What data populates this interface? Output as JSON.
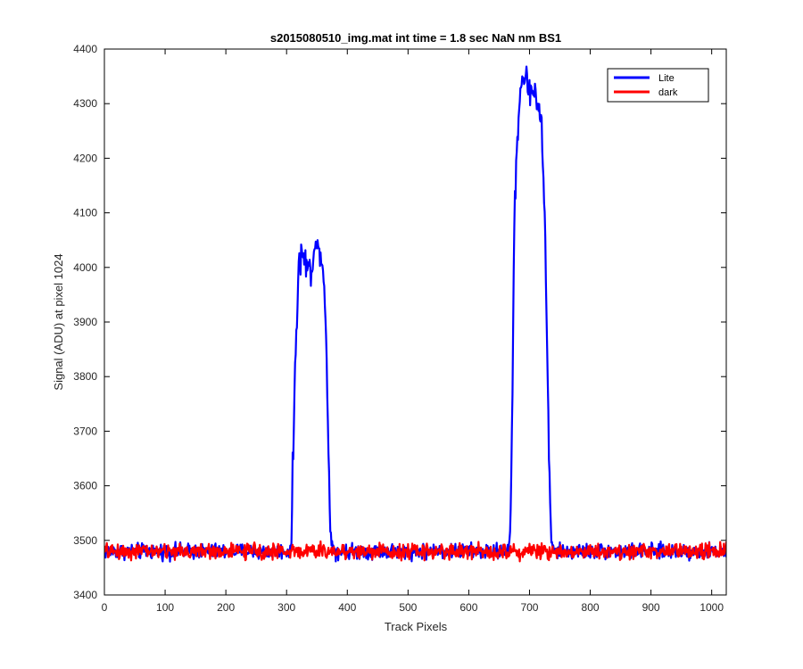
{
  "chart_data": {
    "type": "line",
    "title": "s2015080510_img.mat int time = 1.8 sec  NaN nm BS1",
    "xlabel": "Track Pixels",
    "ylabel": "Signal (ADU) at pixel 1024",
    "xlim": [
      0,
      1024
    ],
    "ylim": [
      3400,
      4400
    ],
    "xticks": [
      0,
      100,
      200,
      300,
      400,
      500,
      600,
      700,
      800,
      900,
      1000
    ],
    "yticks": [
      3400,
      3500,
      3600,
      3700,
      3800,
      3900,
      4000,
      4100,
      4200,
      4300,
      4400
    ],
    "grid": false,
    "legend_position": "top-right",
    "series": [
      {
        "name": "Lite",
        "color": "#0000ff",
        "baseline": 3480,
        "noise": 10,
        "x": [
          0,
          305,
          308,
          310,
          315,
          320,
          325,
          330,
          335,
          340,
          345,
          350,
          355,
          360,
          365,
          368,
          372,
          375,
          380,
          665,
          668,
          672,
          675,
          680,
          685,
          690,
          695,
          700,
          705,
          710,
          715,
          720,
          725,
          730,
          733,
          736,
          740,
          1024
        ],
        "y": [
          3480,
          3480,
          3500,
          3620,
          3860,
          4000,
          4030,
          4010,
          4000,
          3990,
          4040,
          4030,
          4040,
          4000,
          3900,
          3700,
          3520,
          3495,
          3480,
          3480,
          3500,
          3760,
          4100,
          4240,
          4330,
          4350,
          4340,
          4330,
          4320,
          4320,
          4300,
          4250,
          4100,
          3800,
          3600,
          3500,
          3480,
          3480
        ]
      },
      {
        "name": "dark",
        "color": "#ff0000",
        "baseline": 3480,
        "noise": 10,
        "x": [
          0,
          1024
        ],
        "y": [
          3480,
          3480
        ]
      }
    ]
  }
}
